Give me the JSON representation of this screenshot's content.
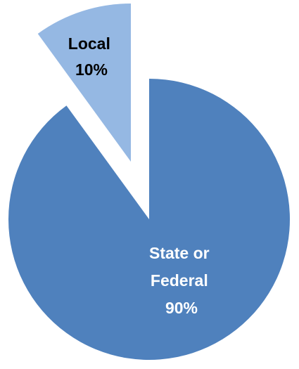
{
  "chart_data": {
    "type": "pie",
    "exploded": true,
    "slices": [
      {
        "label": "Local",
        "percent_label": "10%",
        "value": 10,
        "color": "#95b8e3",
        "text_color": "#000000"
      },
      {
        "label_lines": [
          "State or",
          "Federal"
        ],
        "percent_label": "90%",
        "value": 90,
        "color": "#4f81bd",
        "text_color": "#ffffff"
      }
    ]
  }
}
